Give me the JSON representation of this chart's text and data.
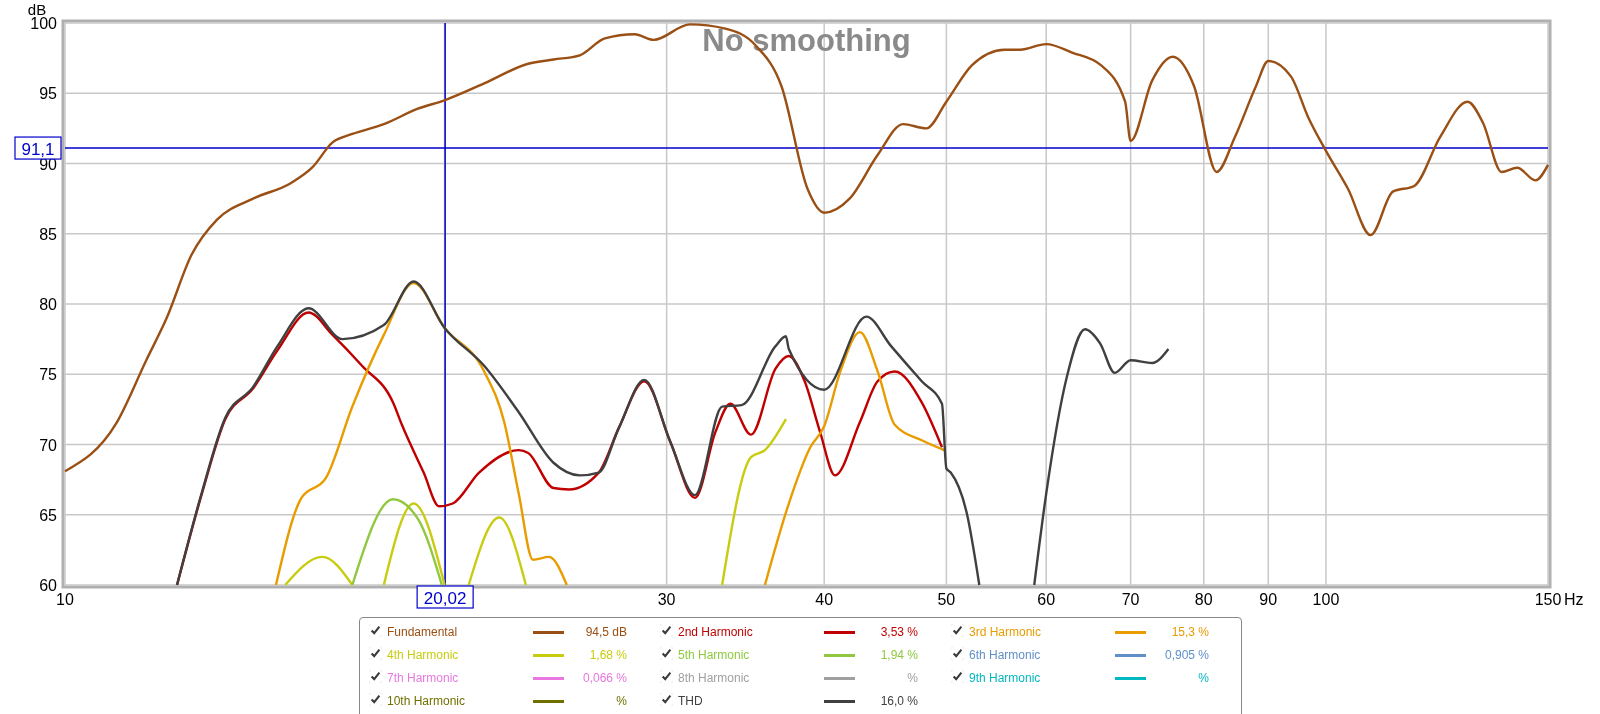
{
  "chart_data": {
    "type": "line",
    "title": "No smoothing",
    "ylabel": "dB",
    "xlabel": "Hz",
    "log": "x",
    "grid": true,
    "legend": "bottom",
    "xlim": [
      10,
      150
    ],
    "ylim": [
      60,
      100
    ],
    "xticks": [
      10,
      {
        "value": 20,
        "label": null
      },
      30,
      40,
      50,
      60,
      70,
      80,
      90,
      100,
      150
    ],
    "yticks": [
      60,
      65,
      70,
      75,
      80,
      85,
      90,
      95,
      100
    ],
    "ref_lines": [
      {
        "axis": "y",
        "value": 91.1,
        "label": "91,1",
        "color": "#0000cc"
      },
      {
        "axis": "x",
        "value": 20.02,
        "label": "20,02",
        "color": "#0000cc"
      }
    ],
    "annotations": [
      "94,5 dB",
      "3,53 %",
      "15,3 %",
      "1,68 %",
      "1,94 %",
      "0,905 %",
      "0,066 %",
      "%",
      "%",
      "%",
      "16,0 %"
    ],
    "series": [
      {
        "name": "Fundamental",
        "color": "#9a4f14",
        "x": [
          10,
          10.98,
          11.6,
          12.04,
          12.6,
          13.2,
          14.1,
          15.1,
          15.7,
          16.3,
          16.9,
          17.9,
          19.05,
          20,
          21.5,
          23.3,
          24.4,
          25.6,
          26.8,
          28.3,
          29.3,
          31.3,
          33.4,
          35.3,
          37,
          38.8,
          40,
          41.9,
          44.1,
          46.2,
          48.2,
          50,
          52.4,
          55.6,
          57.2,
          60,
          62.9,
          66.3,
          69.3,
          70,
          72.8,
          75.6,
          78.6,
          81.9,
          84.7,
          88,
          90,
          93.8,
          96.8,
          100,
          104.1,
          108.5,
          113,
          117.5,
          123.2,
          129.5,
          133.2,
          137.8,
          141.8,
          146.6,
          150
        ],
        "values": [
          68.1,
          71.5,
          76,
          79,
          83.5,
          86,
          87.5,
          88.6,
          89.7,
          91.5,
          92.1,
          92.8,
          93.9,
          94.5,
          95.7,
          97.1,
          97.4,
          97.7,
          98.9,
          99.2,
          98.8,
          99.9,
          99.6,
          98.4,
          95.5,
          88.2,
          86.5,
          87.5,
          90.6,
          92.8,
          92.5,
          94.4,
          97,
          98.1,
          98.1,
          98.5,
          97.9,
          97,
          94.4,
          91.6,
          95.9,
          97.6,
          95.5,
          89.4,
          91.9,
          95.5,
          97.3,
          96.2,
          93.3,
          90.9,
          88.2,
          84.9,
          88,
          88.4,
          91.9,
          94.4,
          92.9,
          89.4,
          89.7,
          88.8,
          89.9
        ]
      },
      {
        "name": "2nd Harmonic",
        "color": "#c00000",
        "x": [
          12.27,
          12.84,
          13.4,
          14.1,
          14.74,
          15.6,
          16.3,
          17.2,
          18.2,
          18.5,
          19.25,
          19.8,
          20.3,
          21.3,
          22.9,
          23.3,
          24.4,
          25.1,
          26.5,
          27.5,
          28.8,
          30.2,
          31.6,
          32.8,
          33.7,
          35,
          36.6,
          37.5,
          38.6,
          39.7,
          40.8,
          42.7,
          44.1,
          45.5,
          47.8,
          49.6
        ],
        "values": [
          60,
          66.5,
          71.8,
          74,
          76.7,
          79.4,
          77.8,
          75.6,
          73,
          71.4,
          68,
          65.6,
          65.8,
          68,
          69.6,
          69.4,
          66.9,
          66.8,
          68,
          71.2,
          74.5,
          70.2,
          66.2,
          70.9,
          72.9,
          70.7,
          75.4,
          76.3,
          74.5,
          70.9,
          67.8,
          71.6,
          74.5,
          75.2,
          73,
          69.8
        ]
      },
      {
        "name": "3rd Harmonic",
        "color": "#e89c00",
        "x": [
          14.7,
          15.4,
          16.1,
          16.9,
          17.9,
          18.9,
          20,
          21.5,
          22.3,
          22.9,
          23.5,
          24.2,
          25,
          30,
          35.9,
          37.5,
          39,
          40,
          41.2,
          42.7,
          44.1,
          45.5,
          47.8,
          49.8
        ],
        "values": [
          60,
          66.2,
          67.6,
          72.7,
          77.8,
          81.5,
          78.3,
          75.2,
          71.6,
          66.5,
          61.8,
          62,
          60,
          null,
          60,
          65.8,
          69.8,
          71.3,
          75.2,
          78,
          75.2,
          71.4,
          70.3,
          69.6
        ]
      },
      {
        "name": "4th Harmonic",
        "color": "#c8cc10",
        "x": [
          14.95,
          16,
          16.9,
          17.4,
          17.9,
          18.9,
          20,
          20.5,
          20.9,
          22.1,
          23.2,
          30,
          33.2,
          35,
          35.9,
          37.3
        ],
        "values": [
          60,
          62,
          60,
          null,
          60,
          65.8,
          60,
          null,
          60,
          64.8,
          60,
          null,
          60,
          69.1,
          69.6,
          71.8
        ]
      },
      {
        "name": "5th Harmonic",
        "color": "#90c840",
        "x": [
          16.9,
          18.2,
          19.05,
          19.9
        ],
        "values": [
          60,
          66.1,
          64.7,
          60
        ]
      },
      {
        "name": "6th Harmonic",
        "color": "#6090c8"
      },
      {
        "name": "7th Harmonic",
        "color": "#e878e0"
      },
      {
        "name": "8th Harmonic",
        "color": "#a0a0a0"
      },
      {
        "name": "9th Harmonic",
        "color": "#00b8c0"
      },
      {
        "name": "10th Harmonic",
        "color": "#707000"
      },
      {
        "name": "THD",
        "color": "#404040",
        "x": [
          12.27,
          12.84,
          13.4,
          14.1,
          14.74,
          15.6,
          16.6,
          17.9,
          18.9,
          20,
          21.5,
          22.9,
          24.4,
          25.6,
          26.5,
          27.5,
          28.8,
          30.2,
          31.6,
          33.2,
          34.4,
          36.6,
          37.3,
          37.5,
          40,
          43.2,
          45.2,
          47.8,
          49.6,
          50,
          50.4,
          51.9,
          53.1,
          55,
          58.7,
          60,
          62.3,
          64.4,
          66.2,
          68,
          70,
          72.8,
          75
        ],
        "values": [
          60,
          66.6,
          71.9,
          74.1,
          77,
          79.7,
          77.5,
          78.5,
          81.6,
          78.3,
          75.6,
          72.3,
          68.7,
          67.8,
          68,
          71.2,
          74.6,
          70.2,
          66.4,
          72.7,
          72.8,
          77,
          77.7,
          76.8,
          73.9,
          79.1,
          77,
          74.5,
          72.9,
          68.3,
          68,
          65.1,
          60,
          null,
          60,
          66.5,
          74.8,
          78.2,
          77.2,
          75.1,
          76,
          75.8,
          76.8
        ]
      }
    ]
  }
}
